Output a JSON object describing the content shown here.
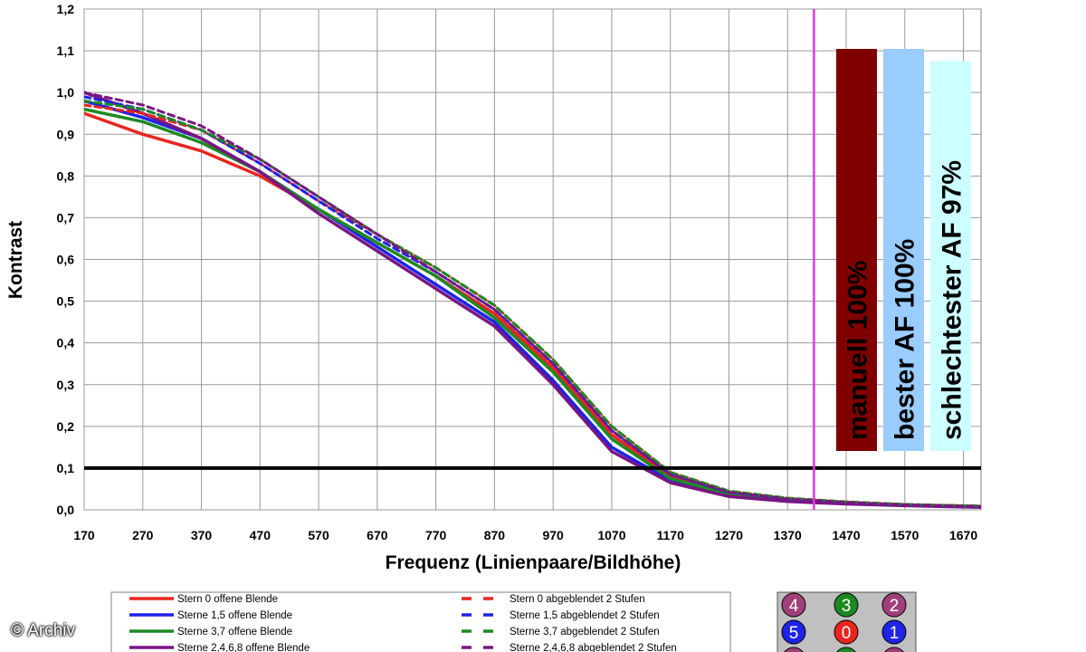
{
  "credit": "© Archiv",
  "chart_data": {
    "type": "line",
    "xlabel": "Frequenz (Linienpaare/Bildhöhe)",
    "ylabel": "Kontrast",
    "xlim": [
      170,
      1700
    ],
    "ylim": [
      0,
      1.2
    ],
    "x_ticks": [
      170,
      270,
      370,
      470,
      570,
      670,
      770,
      870,
      970,
      1070,
      1170,
      1270,
      1370,
      1470,
      1570,
      1670
    ],
    "y_ticks": [
      "0,0",
      "0,1",
      "0,2",
      "0,3",
      "0,4",
      "0,5",
      "0,6",
      "0,7",
      "0,8",
      "0,9",
      "1,0",
      "1,1",
      "1,2"
    ],
    "grid": true,
    "threshold": 0.1,
    "vline_x": 1415,
    "colors": {
      "red": "#e8261e",
      "blue": "#1e23e6",
      "green": "#1c8a22",
      "purple": "#7a1583",
      "vline": "#e03adf"
    },
    "series": [
      {
        "name": "Stern 0 offene Blende",
        "color": "red",
        "dashed": false,
        "x": [
          170,
          270,
          370,
          470,
          570,
          670,
          770,
          870,
          970,
          1070,
          1170,
          1270,
          1370,
          1470,
          1570,
          1700
        ],
        "y": [
          0.95,
          0.9,
          0.86,
          0.8,
          0.72,
          0.64,
          0.56,
          0.47,
          0.34,
          0.18,
          0.08,
          0.04,
          0.025,
          0.017,
          0.012,
          0.008
        ]
      },
      {
        "name": "Sterne 1,5 offene Blende",
        "color": "blue",
        "dashed": false,
        "x": [
          170,
          270,
          370,
          470,
          570,
          670,
          770,
          870,
          970,
          1070,
          1170,
          1270,
          1370,
          1470,
          1570,
          1700
        ],
        "y": [
          0.98,
          0.94,
          0.89,
          0.81,
          0.72,
          0.63,
          0.54,
          0.45,
          0.31,
          0.15,
          0.07,
          0.035,
          0.022,
          0.015,
          0.011,
          0.007
        ]
      },
      {
        "name": "Sterne 3,7 offene Blende",
        "color": "green",
        "dashed": false,
        "x": [
          170,
          270,
          370,
          470,
          570,
          670,
          770,
          870,
          970,
          1070,
          1170,
          1270,
          1370,
          1470,
          1570,
          1700
        ],
        "y": [
          0.96,
          0.93,
          0.88,
          0.81,
          0.72,
          0.64,
          0.56,
          0.46,
          0.33,
          0.17,
          0.075,
          0.038,
          0.024,
          0.016,
          0.012,
          0.008
        ]
      },
      {
        "name": "Sterne 2,4,6,8 offene Blende",
        "color": "purple",
        "dashed": false,
        "x": [
          170,
          270,
          370,
          470,
          570,
          670,
          770,
          870,
          970,
          1070,
          1170,
          1270,
          1370,
          1470,
          1570,
          1700
        ],
        "y": [
          1.0,
          0.95,
          0.89,
          0.81,
          0.71,
          0.62,
          0.53,
          0.44,
          0.3,
          0.14,
          0.065,
          0.032,
          0.02,
          0.014,
          0.01,
          0.006
        ]
      },
      {
        "name": "Stern 0 abgeblendet 2 Stufen",
        "color": "red",
        "dashed": true,
        "x": [
          170,
          270,
          370,
          470,
          570,
          670,
          770,
          870,
          970,
          1070,
          1170,
          1270,
          1370,
          1470,
          1570,
          1700
        ],
        "y": [
          0.97,
          0.95,
          0.91,
          0.83,
          0.74,
          0.66,
          0.58,
          0.49,
          0.36,
          0.2,
          0.09,
          0.045,
          0.028,
          0.019,
          0.013,
          0.009
        ]
      },
      {
        "name": "Sterne 1,5 abgeblendet 2 Stufen",
        "color": "blue",
        "dashed": true,
        "x": [
          170,
          270,
          370,
          470,
          570,
          670,
          770,
          870,
          970,
          1070,
          1170,
          1270,
          1370,
          1470,
          1570,
          1700
        ],
        "y": [
          0.99,
          0.96,
          0.91,
          0.83,
          0.74,
          0.65,
          0.57,
          0.48,
          0.35,
          0.19,
          0.085,
          0.042,
          0.026,
          0.018,
          0.012,
          0.008
        ]
      },
      {
        "name": "Sterne 3,7 abgeblendet 2 Stufen",
        "color": "green",
        "dashed": true,
        "x": [
          170,
          270,
          370,
          470,
          570,
          670,
          770,
          870,
          970,
          1070,
          1170,
          1270,
          1370,
          1470,
          1570,
          1700
        ],
        "y": [
          0.98,
          0.96,
          0.91,
          0.84,
          0.75,
          0.66,
          0.58,
          0.49,
          0.36,
          0.2,
          0.09,
          0.045,
          0.028,
          0.019,
          0.013,
          0.009
        ]
      },
      {
        "name": "Sterne 2,4,6,8 abgeblendet 2 Stufen",
        "color": "purple",
        "dashed": true,
        "x": [
          170,
          270,
          370,
          470,
          570,
          670,
          770,
          870,
          970,
          1070,
          1170,
          1270,
          1370,
          1470,
          1570,
          1700
        ],
        "y": [
          1.0,
          0.97,
          0.92,
          0.84,
          0.75,
          0.66,
          0.57,
          0.48,
          0.35,
          0.19,
          0.085,
          0.042,
          0.026,
          0.018,
          0.012,
          0.008
        ]
      }
    ],
    "bars": [
      {
        "label": "manuell 100%",
        "value": 100,
        "color": "#800000"
      },
      {
        "label": "bester AF 100%",
        "value": 100,
        "color": "#99ccff"
      },
      {
        "label": "schlechtester AF 97%",
        "value": 97,
        "color": "#ccffff"
      }
    ],
    "legend": {
      "left": [
        "Stern 0 offene Blende",
        "Sterne 1,5 offene Blende",
        "Sterne 3,7 offene Blende",
        "Sterne 2,4,6,8 offene Blende"
      ],
      "right": [
        "Stern 0 abgeblendet 2 Stufen",
        "Sterne 1,5 abgeblendet 2 Stufen",
        "Sterne 3,7 abgeblendet 2 Stufen",
        "Sterne 2,4,6,8 abgeblendet 2 Stufen"
      ]
    },
    "markers": [
      {
        "label": "4",
        "color": "#a0407a"
      },
      {
        "label": "3",
        "color": "#1c8a22"
      },
      {
        "label": "2",
        "color": "#a0407a"
      },
      {
        "label": "5",
        "color": "#1e23e6"
      },
      {
        "label": "0",
        "color": "#e8261e"
      },
      {
        "label": "1",
        "color": "#1e23e6"
      },
      {
        "label": "",
        "color": "#a0407a"
      },
      {
        "label": "",
        "color": "#1c8a22"
      },
      {
        "label": "",
        "color": "#a0407a"
      }
    ]
  }
}
